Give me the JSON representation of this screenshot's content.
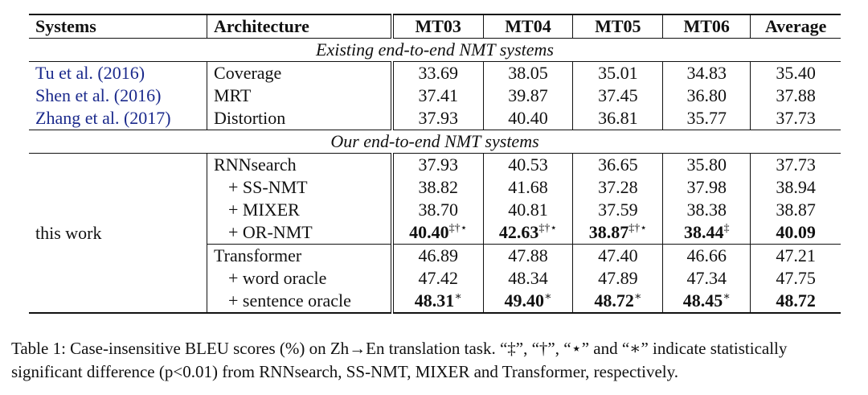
{
  "headers": {
    "systems": "Systems",
    "architecture": "Architecture",
    "mt03": "MT03",
    "mt04": "MT04",
    "mt05": "MT05",
    "mt06": "MT06",
    "average": "Average"
  },
  "section_existing": "Existing end-to-end NMT systems",
  "existing_rows": [
    {
      "system": "Tu et al. (2016)",
      "arch": "Coverage",
      "mt03": "33.69",
      "mt04": "38.05",
      "mt05": "35.01",
      "mt06": "34.83",
      "avg": "35.40"
    },
    {
      "system": "Shen et al. (2016)",
      "arch": "MRT",
      "mt03": "37.41",
      "mt04": "39.87",
      "mt05": "37.45",
      "mt06": "36.80",
      "avg": "37.88"
    },
    {
      "system": "Zhang et al. (2017)",
      "arch": "Distortion",
      "mt03": "37.93",
      "mt04": "40.40",
      "mt05": "36.81",
      "mt06": "35.77",
      "avg": "37.73"
    }
  ],
  "section_ours": "Our end-to-end NMT systems",
  "ours_system": "this work",
  "rnn_rows": [
    {
      "arch": "RNNsearch",
      "mt03": "37.93",
      "mt04": "40.53",
      "mt05": "36.65",
      "mt06": "35.80",
      "avg": "37.73"
    },
    {
      "arch": "+ SS-NMT",
      "mt03": "38.82",
      "mt04": "41.68",
      "mt05": "37.28",
      "mt06": "37.98",
      "avg": "38.94"
    },
    {
      "arch": "+ MIXER",
      "mt03": "38.70",
      "mt04": "40.81",
      "mt05": "37.59",
      "mt06": "38.38",
      "avg": "38.87"
    },
    {
      "arch": "+ OR-NMT",
      "mt03": "40.40",
      "mt03_sup": "‡†⋆",
      "mt04": "42.63",
      "mt04_sup": "‡†⋆",
      "mt05": "38.87",
      "mt05_sup": "‡†⋆",
      "mt06": "38.44",
      "mt06_sup": "‡",
      "avg": "40.09"
    }
  ],
  "tf_rows": [
    {
      "arch": "Transformer",
      "mt03": "46.89",
      "mt04": "47.88",
      "mt05": "47.40",
      "mt06": "46.66",
      "avg": "47.21"
    },
    {
      "arch": "+ word oracle",
      "mt03": "47.42",
      "mt04": "48.34",
      "mt05": "47.89",
      "mt06": "47.34",
      "avg": "47.75"
    },
    {
      "arch": "+ sentence oracle",
      "mt03": "48.31",
      "mt03_sup": "∗",
      "mt04": "49.40",
      "mt04_sup": "∗",
      "mt05": "48.72",
      "mt05_sup": "∗",
      "mt06": "48.45",
      "mt06_sup": "∗",
      "avg": "48.72"
    }
  ],
  "caption": "Table 1: Case-insensitive BLEU scores (%) on Zh→En translation task. “‡”, “†”, “⋆” and “∗” indicate statistically significant difference (p<0.01) from RNNsearch, SS-NMT, MIXER and Transformer, respectively."
}
